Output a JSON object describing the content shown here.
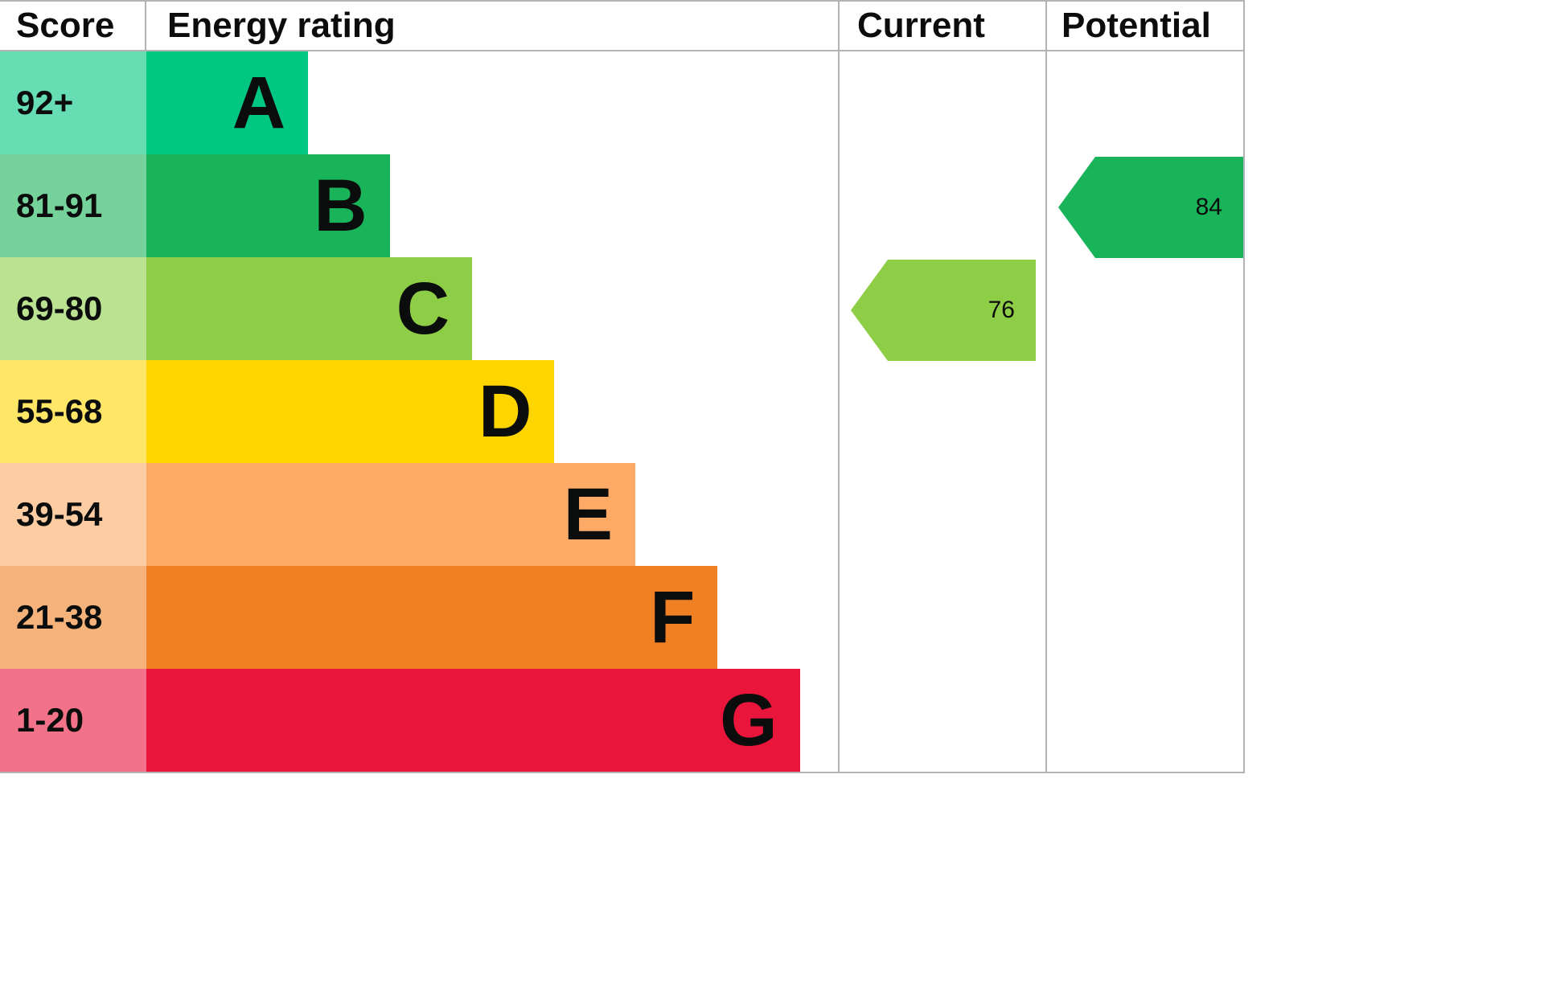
{
  "header": {
    "score_label": "Score",
    "rating_label": "Energy rating",
    "current_label": "Current",
    "potential_label": "Potential"
  },
  "colors": {
    "border": "#b1b4b6",
    "text": "#0b0c0c",
    "background": "#ffffff"
  },
  "chart_data": {
    "type": "bar",
    "title": "Energy rating",
    "description": "EPC energy efficiency rating chart with current and potential scores",
    "categories": [
      "A",
      "B",
      "C",
      "D",
      "E",
      "F",
      "G"
    ],
    "bands": [
      {
        "score": "92+",
        "letter": "A",
        "color": "#00c781",
        "score_bg": "#66ddb3",
        "bar_width_pct": 23.4
      },
      {
        "score": "81-91",
        "letter": "B",
        "color": "#19b459",
        "score_bg": "#75d29b",
        "bar_width_pct": 35.2
      },
      {
        "score": "69-80",
        "letter": "C",
        "color": "#8dce46",
        "score_bg": "#bbe290",
        "bar_width_pct": 47.1
      },
      {
        "score": "55-68",
        "letter": "D",
        "color": "#ffd500",
        "score_bg": "#ffe666",
        "bar_width_pct": 59.0
      },
      {
        "score": "39-54",
        "letter": "E",
        "color": "#fcaa65",
        "score_bg": "#fdcca3",
        "bar_width_pct": 70.7
      },
      {
        "score": "21-38",
        "letter": "F",
        "color": "#ef8023",
        "score_bg": "#f5b37b",
        "bar_width_pct": 82.6
      },
      {
        "score": "1-20",
        "letter": "G",
        "color": "#e9153b",
        "score_bg": "#f27389",
        "bar_width_pct": 94.5
      }
    ],
    "current": {
      "value": "76",
      "band": "C",
      "color": "#8dce46",
      "row_index": 2
    },
    "potential": {
      "value": "84",
      "band": "B",
      "color": "#19b459",
      "row_index": 1
    }
  }
}
